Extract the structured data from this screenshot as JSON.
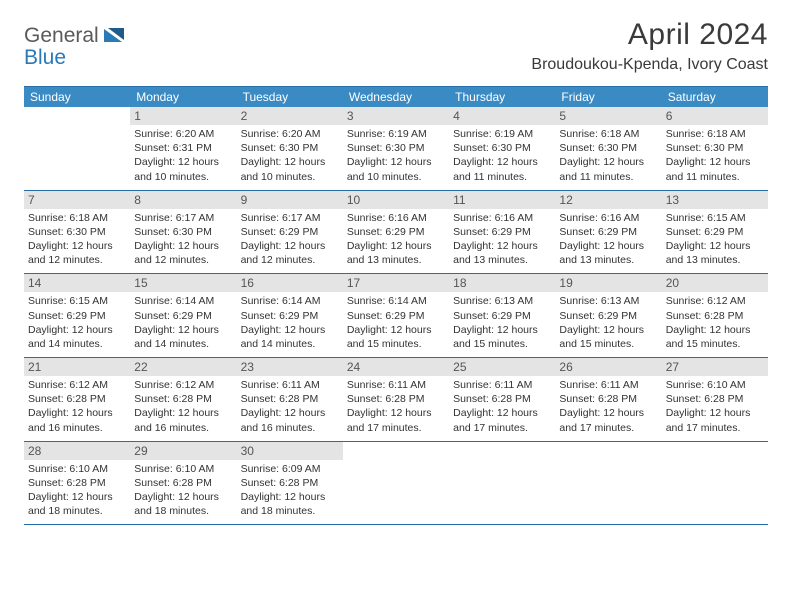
{
  "logo": {
    "text1": "General",
    "text2": "Blue"
  },
  "title": "April 2024",
  "location": "Broudoukou-Kpenda, Ivory Coast",
  "colors": {
    "header_bar": "#3a8ac4",
    "border": "#2a6ea8",
    "daynum_bg": "#e4e4e4",
    "text": "#333333",
    "logo_gray": "#5a5a5a",
    "logo_blue": "#2a7ab8"
  },
  "daysOfWeek": [
    "Sunday",
    "Monday",
    "Tuesday",
    "Wednesday",
    "Thursday",
    "Friday",
    "Saturday"
  ],
  "weeks": [
    [
      {
        "n": "",
        "lines": []
      },
      {
        "n": "1",
        "lines": [
          "Sunrise: 6:20 AM",
          "Sunset: 6:31 PM",
          "Daylight: 12 hours",
          "and 10 minutes."
        ]
      },
      {
        "n": "2",
        "lines": [
          "Sunrise: 6:20 AM",
          "Sunset: 6:30 PM",
          "Daylight: 12 hours",
          "and 10 minutes."
        ]
      },
      {
        "n": "3",
        "lines": [
          "Sunrise: 6:19 AM",
          "Sunset: 6:30 PM",
          "Daylight: 12 hours",
          "and 10 minutes."
        ]
      },
      {
        "n": "4",
        "lines": [
          "Sunrise: 6:19 AM",
          "Sunset: 6:30 PM",
          "Daylight: 12 hours",
          "and 11 minutes."
        ]
      },
      {
        "n": "5",
        "lines": [
          "Sunrise: 6:18 AM",
          "Sunset: 6:30 PM",
          "Daylight: 12 hours",
          "and 11 minutes."
        ]
      },
      {
        "n": "6",
        "lines": [
          "Sunrise: 6:18 AM",
          "Sunset: 6:30 PM",
          "Daylight: 12 hours",
          "and 11 minutes."
        ]
      }
    ],
    [
      {
        "n": "7",
        "lines": [
          "Sunrise: 6:18 AM",
          "Sunset: 6:30 PM",
          "Daylight: 12 hours",
          "and 12 minutes."
        ]
      },
      {
        "n": "8",
        "lines": [
          "Sunrise: 6:17 AM",
          "Sunset: 6:30 PM",
          "Daylight: 12 hours",
          "and 12 minutes."
        ]
      },
      {
        "n": "9",
        "lines": [
          "Sunrise: 6:17 AM",
          "Sunset: 6:29 PM",
          "Daylight: 12 hours",
          "and 12 minutes."
        ]
      },
      {
        "n": "10",
        "lines": [
          "Sunrise: 6:16 AM",
          "Sunset: 6:29 PM",
          "Daylight: 12 hours",
          "and 13 minutes."
        ]
      },
      {
        "n": "11",
        "lines": [
          "Sunrise: 6:16 AM",
          "Sunset: 6:29 PM",
          "Daylight: 12 hours",
          "and 13 minutes."
        ]
      },
      {
        "n": "12",
        "lines": [
          "Sunrise: 6:16 AM",
          "Sunset: 6:29 PM",
          "Daylight: 12 hours",
          "and 13 minutes."
        ]
      },
      {
        "n": "13",
        "lines": [
          "Sunrise: 6:15 AM",
          "Sunset: 6:29 PM",
          "Daylight: 12 hours",
          "and 13 minutes."
        ]
      }
    ],
    [
      {
        "n": "14",
        "lines": [
          "Sunrise: 6:15 AM",
          "Sunset: 6:29 PM",
          "Daylight: 12 hours",
          "and 14 minutes."
        ]
      },
      {
        "n": "15",
        "lines": [
          "Sunrise: 6:14 AM",
          "Sunset: 6:29 PM",
          "Daylight: 12 hours",
          "and 14 minutes."
        ]
      },
      {
        "n": "16",
        "lines": [
          "Sunrise: 6:14 AM",
          "Sunset: 6:29 PM",
          "Daylight: 12 hours",
          "and 14 minutes."
        ]
      },
      {
        "n": "17",
        "lines": [
          "Sunrise: 6:14 AM",
          "Sunset: 6:29 PM",
          "Daylight: 12 hours",
          "and 15 minutes."
        ]
      },
      {
        "n": "18",
        "lines": [
          "Sunrise: 6:13 AM",
          "Sunset: 6:29 PM",
          "Daylight: 12 hours",
          "and 15 minutes."
        ]
      },
      {
        "n": "19",
        "lines": [
          "Sunrise: 6:13 AM",
          "Sunset: 6:29 PM",
          "Daylight: 12 hours",
          "and 15 minutes."
        ]
      },
      {
        "n": "20",
        "lines": [
          "Sunrise: 6:12 AM",
          "Sunset: 6:28 PM",
          "Daylight: 12 hours",
          "and 15 minutes."
        ]
      }
    ],
    [
      {
        "n": "21",
        "lines": [
          "Sunrise: 6:12 AM",
          "Sunset: 6:28 PM",
          "Daylight: 12 hours",
          "and 16 minutes."
        ]
      },
      {
        "n": "22",
        "lines": [
          "Sunrise: 6:12 AM",
          "Sunset: 6:28 PM",
          "Daylight: 12 hours",
          "and 16 minutes."
        ]
      },
      {
        "n": "23",
        "lines": [
          "Sunrise: 6:11 AM",
          "Sunset: 6:28 PM",
          "Daylight: 12 hours",
          "and 16 minutes."
        ]
      },
      {
        "n": "24",
        "lines": [
          "Sunrise: 6:11 AM",
          "Sunset: 6:28 PM",
          "Daylight: 12 hours",
          "and 17 minutes."
        ]
      },
      {
        "n": "25",
        "lines": [
          "Sunrise: 6:11 AM",
          "Sunset: 6:28 PM",
          "Daylight: 12 hours",
          "and 17 minutes."
        ]
      },
      {
        "n": "26",
        "lines": [
          "Sunrise: 6:11 AM",
          "Sunset: 6:28 PM",
          "Daylight: 12 hours",
          "and 17 minutes."
        ]
      },
      {
        "n": "27",
        "lines": [
          "Sunrise: 6:10 AM",
          "Sunset: 6:28 PM",
          "Daylight: 12 hours",
          "and 17 minutes."
        ]
      }
    ],
    [
      {
        "n": "28",
        "lines": [
          "Sunrise: 6:10 AM",
          "Sunset: 6:28 PM",
          "Daylight: 12 hours",
          "and 18 minutes."
        ]
      },
      {
        "n": "29",
        "lines": [
          "Sunrise: 6:10 AM",
          "Sunset: 6:28 PM",
          "Daylight: 12 hours",
          "and 18 minutes."
        ]
      },
      {
        "n": "30",
        "lines": [
          "Sunrise: 6:09 AM",
          "Sunset: 6:28 PM",
          "Daylight: 12 hours",
          "and 18 minutes."
        ]
      },
      {
        "n": "",
        "lines": []
      },
      {
        "n": "",
        "lines": []
      },
      {
        "n": "",
        "lines": []
      },
      {
        "n": "",
        "lines": []
      }
    ]
  ]
}
